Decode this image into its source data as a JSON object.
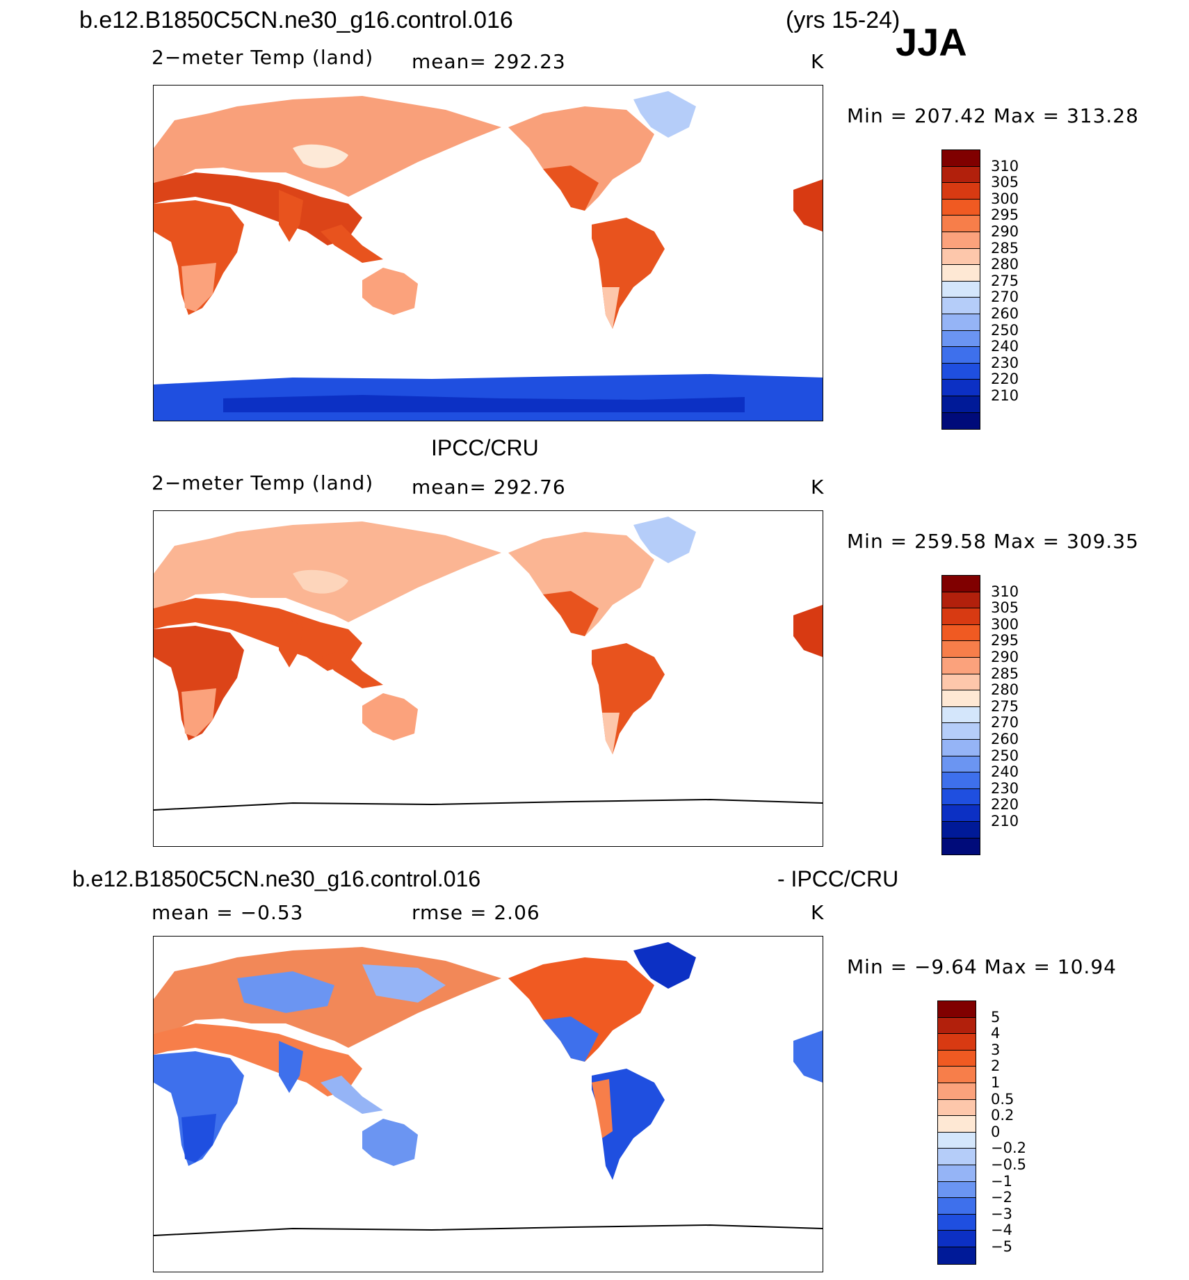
{
  "header": {
    "case_name": "b.e12.B1850C5CN.ne30_g16.control.016",
    "years": "(yrs 15-24)",
    "season": "JJA"
  },
  "panels": [
    {
      "id": "model",
      "title": "",
      "variable": "2−meter Temp (land)",
      "stat": "mean=  292.23",
      "units": "K",
      "minmax": "Min  =  207.42  Max  =  313.28",
      "colorbar": {
        "colors": [
          "#800000",
          "#b2200c",
          "#d83a12",
          "#f05a22",
          "#f77e4a",
          "#fba27c",
          "#fdc7ab",
          "#fee8d4",
          "#d4e6fb",
          "#b5cdf9",
          "#95b4f6",
          "#6b95f2",
          "#3e70ec",
          "#1f4fe0",
          "#0c30c4",
          "#001a98",
          "#000b7a"
        ],
        "labels": [
          "310",
          "305",
          "300",
          "295",
          "290",
          "285",
          "280",
          "275",
          "270",
          "260",
          "250",
          "240",
          "230",
          "220",
          "210"
        ]
      }
    },
    {
      "id": "obs",
      "title": "IPCC/CRU",
      "variable": "2−meter Temp (land)",
      "stat": "mean=  292.76",
      "units": "K",
      "minmax": "Min  =  259.58  Max  =  309.35",
      "colorbar": {
        "colors": [
          "#800000",
          "#b2200c",
          "#d83a12",
          "#f05a22",
          "#f77e4a",
          "#fba27c",
          "#fdc7ab",
          "#fee8d4",
          "#d4e6fb",
          "#b5cdf9",
          "#95b4f6",
          "#6b95f2",
          "#3e70ec",
          "#1f4fe0",
          "#0c30c4",
          "#001a98",
          "#000b7a"
        ],
        "labels": [
          "310",
          "305",
          "300",
          "295",
          "290",
          "285",
          "280",
          "275",
          "270",
          "260",
          "250",
          "240",
          "230",
          "220",
          "210"
        ]
      }
    },
    {
      "id": "diff",
      "title_left": "b.e12.B1850C5CN.ne30_g16.control.016",
      "title_right": "- IPCC/CRU",
      "stat_left": "mean  =   −0.53",
      "stat": "rmse  =     2.06",
      "units": "K",
      "minmax": "Min  =    −9.64  Max  =    10.94",
      "colorbar": {
        "colors": [
          "#800000",
          "#b2200c",
          "#d83a12",
          "#f05a22",
          "#f77e4a",
          "#fba27c",
          "#fdc7ab",
          "#fee8d4",
          "#d4e6fb",
          "#b5cdf9",
          "#95b4f6",
          "#6b95f2",
          "#3e70ec",
          "#1f4fe0",
          "#0c30c4",
          "#001a98"
        ],
        "labels": [
          "5",
          "4",
          "3",
          "2",
          "1",
          "0.5",
          "0.2",
          "0",
          "−0.2",
          "−0.5",
          "−1",
          "−2",
          "−3",
          "−4",
          "−5"
        ]
      }
    }
  ]
}
